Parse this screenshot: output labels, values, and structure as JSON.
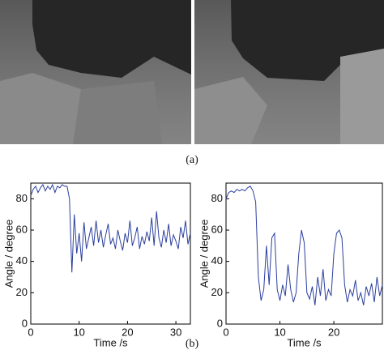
{
  "captions": [
    "(a)",
    "(b)"
  ],
  "chart_data": [
    {
      "type": "line",
      "x_label": "Time /s",
      "y_label": "Angle / degree",
      "xlim": [
        0,
        33
      ],
      "xticks": [
        0,
        10,
        20,
        30
      ],
      "ylim": [
        0,
        90
      ],
      "yticks": [
        0,
        20,
        40,
        60,
        80
      ],
      "x": [
        0,
        0.5,
        1,
        1.5,
        2,
        2.5,
        3,
        3.5,
        4,
        4.5,
        5,
        5.5,
        6,
        6.5,
        7,
        7.5,
        8,
        8.5,
        9,
        9.5,
        10,
        10.5,
        11,
        11.5,
        12,
        12.5,
        13,
        13.5,
        14,
        14.5,
        15,
        15.5,
        16,
        16.5,
        17,
        17.5,
        18,
        18.5,
        19,
        19.5,
        20,
        20.5,
        21,
        21.5,
        22,
        22.5,
        23,
        23.5,
        24,
        24.5,
        25,
        25.5,
        26,
        26.5,
        27,
        27.5,
        28,
        28.5,
        29,
        29.5,
        30,
        30.5,
        31,
        31.5,
        32,
        32.5,
        33
      ],
      "series": [
        {
          "color": "#2b3f9e",
          "values": [
            82,
            86,
            88,
            84,
            87,
            89,
            85,
            88,
            86,
            89,
            84,
            88,
            87,
            89,
            88,
            88,
            80,
            33,
            70,
            45,
            58,
            40,
            65,
            48,
            55,
            62,
            50,
            66,
            52,
            60,
            49,
            57,
            64,
            51,
            55,
            48,
            60,
            53,
            47,
            58,
            52,
            66,
            50,
            55,
            62,
            48,
            56,
            51,
            59,
            53,
            68,
            50,
            72,
            55,
            49,
            60,
            52,
            64,
            50,
            57,
            53,
            48,
            62,
            55,
            66,
            51,
            58
          ]
        }
      ]
    },
    {
      "type": "line",
      "x_label": "Time /s",
      "y_label": "Angle / degree",
      "xlim": [
        0,
        29
      ],
      "xticks": [
        0,
        10,
        20
      ],
      "ylim": [
        0,
        90
      ],
      "yticks": [
        0,
        20,
        40,
        60,
        80
      ],
      "x": [
        0,
        0.5,
        1,
        1.5,
        2,
        2.5,
        3,
        3.5,
        4,
        4.5,
        5,
        5.5,
        6,
        6.5,
        7,
        7.5,
        8,
        8.5,
        9,
        9.5,
        10,
        10.5,
        11,
        11.5,
        12,
        12.5,
        13,
        13.5,
        14,
        14.5,
        15,
        15.5,
        16,
        16.5,
        17,
        17.5,
        18,
        18.5,
        19,
        19.5,
        20,
        20.5,
        21,
        21.5,
        22,
        22.5,
        23,
        23.5,
        24,
        24.5,
        25,
        25.5,
        26,
        26.5,
        27,
        27.5,
        28,
        28.5,
        29
      ],
      "series": [
        {
          "color": "#2b3f9e",
          "values": [
            80,
            84,
            85,
            84,
            86,
            85,
            86,
            85,
            87,
            88,
            85,
            78,
            30,
            15,
            22,
            50,
            25,
            55,
            58,
            22,
            15,
            25,
            18,
            38,
            22,
            14,
            20,
            45,
            60,
            52,
            20,
            16,
            24,
            12,
            30,
            18,
            35,
            15,
            22,
            18,
            45,
            58,
            60,
            55,
            25,
            14,
            22,
            18,
            28,
            15,
            20,
            12,
            24,
            18,
            26,
            14,
            30,
            18,
            25
          ]
        }
      ]
    }
  ]
}
